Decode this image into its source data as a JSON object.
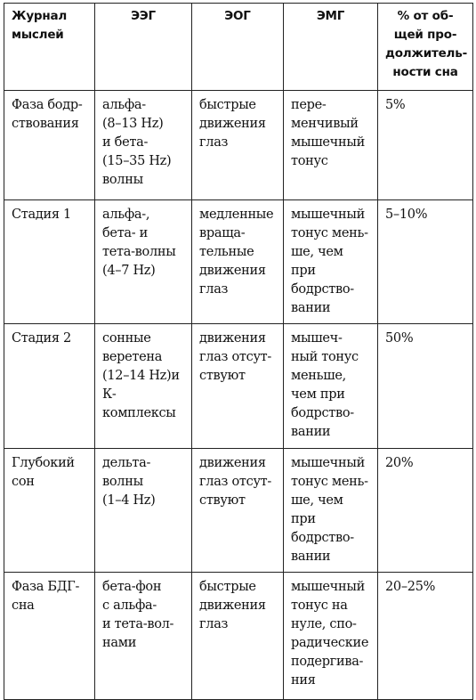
{
  "headers": {
    "col1": "Журнал\nмыслей",
    "col2": "ЭЭГ",
    "col3": "ЭОГ",
    "col4": "ЭМГ",
    "col5": "% от об-\nщей про-\nдолжитель-\nности сна"
  },
  "rows": [
    {
      "phase": "Фаза бодр-\nствования",
      "eeg": "альфа-\n(8–13 Hz)\nи бета-\n(15–35 Hz)\nволны",
      "eog": "быстрые\nдвижения\nглаз",
      "emg": "пере-\nменчивый\nмышечный\nтонус",
      "percent": "5%"
    },
    {
      "phase": "Стадия 1",
      "eeg": "альфа-,\nбета- и\nтета-волны\n(4–7 Hz)",
      "eog": "медленные\nвраща-\nтельные\nдвижения\nглаз",
      "emg": "мышечный\nтонус мень-\nше, чем при\nбодрство-\nвании",
      "percent": "5–10%"
    },
    {
      "phase": "Стадия 2",
      "eeg": "сонные\nверетена\n(12–14 Hz)и\nК-комплексы",
      "eog": "движения\nглаз отсут-\nствуют",
      "emg": "мышеч-\nный тонус\nменьше,\nчем при\nбодрство-\nвании",
      "percent": "50%"
    },
    {
      "phase": "Глубокий\nсон",
      "eeg": "дельта-\nволны\n(1–4 Hz)",
      "eog": "движения\nглаз отсут-\nствуют",
      "emg": "мышечный\nтонус мень-\nше, чем при\nбодрство-\nвании",
      "percent": "20%"
    },
    {
      "phase": "Фаза БДГ-\nсна",
      "eeg": "бета-фон\nс альфа-\nи тета-вол-\nнами",
      "eog": "быстрые\nдвижения\nглаз",
      "emg": "мышечный\nтонус на\nнуле, спо-\nрадические\nподергива-\nния",
      "percent": "20–25%"
    }
  ]
}
